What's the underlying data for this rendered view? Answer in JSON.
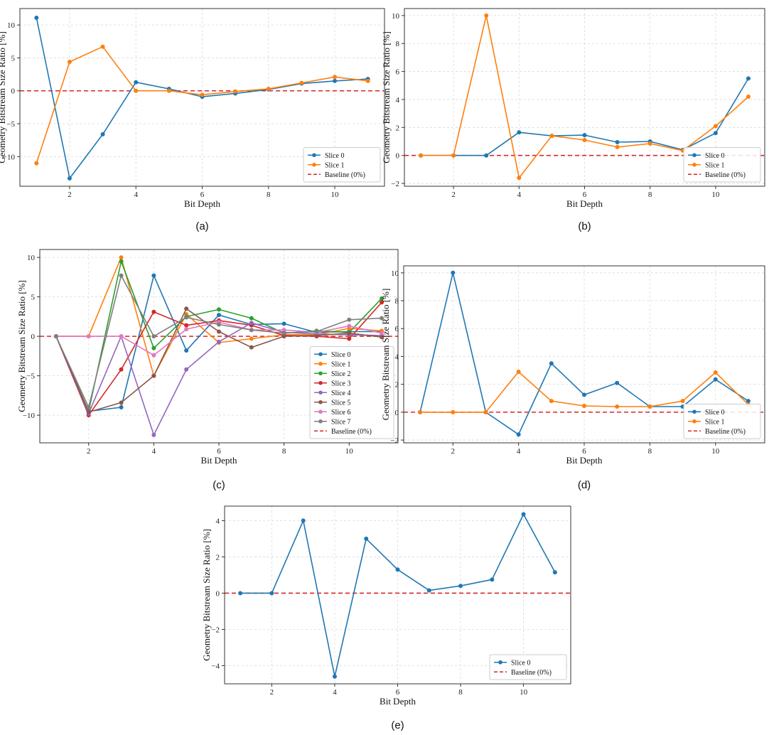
{
  "colors": {
    "baseline": "#d62728",
    "series": [
      "#1f77b4",
      "#ff7f0e",
      "#2ca02c",
      "#d62728",
      "#9467bd",
      "#8c564b",
      "#e377c2",
      "#7f7f7f"
    ]
  },
  "chart_data": [
    {
      "id": "a",
      "type": "line",
      "caption": "(a)",
      "xlabel": "Bit Depth",
      "ylabel": "Geometry Bitstream Size Ratio [%]",
      "xlim": [
        0.5,
        11.5
      ],
      "ylim": [
        -14.5,
        12.5
      ],
      "xticks": [
        2,
        4,
        6,
        8,
        10
      ],
      "yticks": [
        -10,
        -5,
        0,
        5,
        10
      ],
      "x": [
        1,
        2,
        3,
        4,
        5,
        6,
        7,
        8,
        9,
        10,
        11
      ],
      "series": [
        {
          "name": "Slice 0",
          "values": [
            11.1,
            -13.3,
            -6.6,
            1.3,
            0.3,
            -0.9,
            -0.4,
            0.2,
            1.1,
            1.5,
            1.8
          ]
        },
        {
          "name": "Slice 1",
          "values": [
            -11.0,
            4.4,
            6.7,
            0.0,
            0.0,
            -0.6,
            -0.1,
            0.3,
            1.2,
            2.1,
            1.5
          ]
        }
      ],
      "baseline_label": "Baseline (0%)"
    },
    {
      "id": "b",
      "type": "line",
      "caption": "(b)",
      "xlabel": "Bit Depth",
      "ylabel": "Geometry Bitstream Size Ratio [%]",
      "xlim": [
        0.5,
        11.5
      ],
      "ylim": [
        -2.2,
        10.5
      ],
      "xticks": [
        2,
        4,
        6,
        8,
        10
      ],
      "yticks": [
        -2,
        0,
        2,
        4,
        6,
        8,
        10
      ],
      "x": [
        1,
        2,
        3,
        4,
        5,
        6,
        7,
        8,
        9,
        10,
        11
      ],
      "series": [
        {
          "name": "Slice 0",
          "values": [
            0.0,
            0.0,
            0.0,
            1.65,
            1.4,
            1.45,
            0.95,
            1.0,
            0.4,
            1.6,
            5.5
          ]
        },
        {
          "name": "Slice 1",
          "values": [
            0.0,
            0.0,
            10.0,
            -1.6,
            1.4,
            1.1,
            0.6,
            0.85,
            0.35,
            2.1,
            4.2
          ]
        }
      ],
      "baseline_label": "Baseline (0%)"
    },
    {
      "id": "c",
      "type": "line",
      "caption": "(c)",
      "xlabel": "Bit Depth",
      "ylabel": "Geometry Bitstream Size Ratio [%]",
      "xlim": [
        0.5,
        11.5
      ],
      "ylim": [
        -13.5,
        11
      ],
      "xticks": [
        2,
        4,
        6,
        8,
        10
      ],
      "yticks": [
        -10,
        -5,
        0,
        5,
        10
      ],
      "x": [
        1,
        2,
        3,
        4,
        5,
        6,
        7,
        8,
        9,
        10,
        11
      ],
      "series": [
        {
          "name": "Slice 0",
          "values": [
            0.0,
            -9.5,
            -9.0,
            7.7,
            -1.8,
            2.7,
            1.5,
            1.6,
            0.5,
            0.6,
            0.6
          ]
        },
        {
          "name": "Slice 1",
          "values": [
            0.0,
            0.0,
            10.0,
            -5.0,
            2.8,
            -0.8,
            -0.3,
            0.2,
            0.2,
            1.0,
            0.7
          ]
        },
        {
          "name": "Slice 2",
          "values": [
            0.0,
            -9.5,
            9.5,
            -1.5,
            2.5,
            3.4,
            2.3,
            0.4,
            0.7,
            0.5,
            4.8
          ]
        },
        {
          "name": "Slice 3",
          "values": [
            0.0,
            -10.0,
            -4.2,
            3.1,
            1.4,
            2.0,
            1.4,
            0.1,
            0.0,
            -0.3,
            4.3
          ]
        },
        {
          "name": "Slice 4",
          "values": [
            0.0,
            -9.8,
            0.0,
            -12.5,
            -4.2,
            -0.7,
            1.7,
            0.5,
            0.3,
            0.2,
            0.1
          ]
        },
        {
          "name": "Slice 5",
          "values": [
            0.0,
            -9.6,
            -8.4,
            -5.0,
            3.5,
            0.6,
            -1.4,
            0.0,
            0.1,
            0.4,
            -0.1
          ]
        },
        {
          "name": "Slice 6",
          "values": [
            0.0,
            0.0,
            0.0,
            -2.4,
            0.9,
            1.8,
            0.8,
            0.8,
            0.5,
            1.3,
            0.4
          ]
        },
        {
          "name": "Slice 7",
          "values": [
            0.0,
            -9.0,
            7.7,
            0.0,
            2.4,
            1.5,
            0.8,
            0.4,
            0.6,
            2.1,
            2.3
          ]
        }
      ],
      "baseline_label": "Baseline (0%)"
    },
    {
      "id": "d",
      "type": "line",
      "caption": "(d)",
      "xlabel": "Bit Depth",
      "ylabel": "Geometry Bitstream Size Ratio [%]",
      "xlim": [
        0.5,
        11.5
      ],
      "ylim": [
        -2.2,
        10.5
      ],
      "xticks": [
        2,
        4,
        6,
        8,
        10
      ],
      "yticks": [
        -2,
        0,
        2,
        4,
        6,
        8,
        10
      ],
      "x": [
        1,
        2,
        3,
        4,
        5,
        6,
        7,
        8,
        9,
        10,
        11
      ],
      "series": [
        {
          "name": "Slice 0",
          "values": [
            0.0,
            10.0,
            0.0,
            -1.6,
            3.5,
            1.25,
            2.1,
            0.4,
            0.4,
            2.35,
            0.8
          ]
        },
        {
          "name": "Slice 1",
          "values": [
            0.0,
            0.0,
            0.0,
            2.9,
            0.8,
            0.45,
            0.4,
            0.4,
            0.8,
            2.85,
            0.55
          ]
        }
      ],
      "baseline_label": "Baseline (0%)"
    },
    {
      "id": "e",
      "type": "line",
      "caption": "(e)",
      "xlabel": "Bit Depth",
      "ylabel": "Geometry Bitstream Size Ratio [%]",
      "xlim": [
        0.5,
        11.5
      ],
      "ylim": [
        -5.0,
        4.8
      ],
      "xticks": [
        2,
        4,
        6,
        8,
        10
      ],
      "yticks": [
        -4,
        -2,
        0,
        2,
        4
      ],
      "x": [
        1,
        2,
        3,
        4,
        5,
        6,
        7,
        8,
        9,
        10,
        11
      ],
      "series": [
        {
          "name": "Slice 0",
          "values": [
            0.0,
            0.0,
            4.0,
            -4.6,
            3.0,
            1.3,
            0.15,
            0.4,
            0.75,
            4.35,
            1.15
          ]
        }
      ],
      "baseline_label": "Baseline (0%)"
    }
  ]
}
